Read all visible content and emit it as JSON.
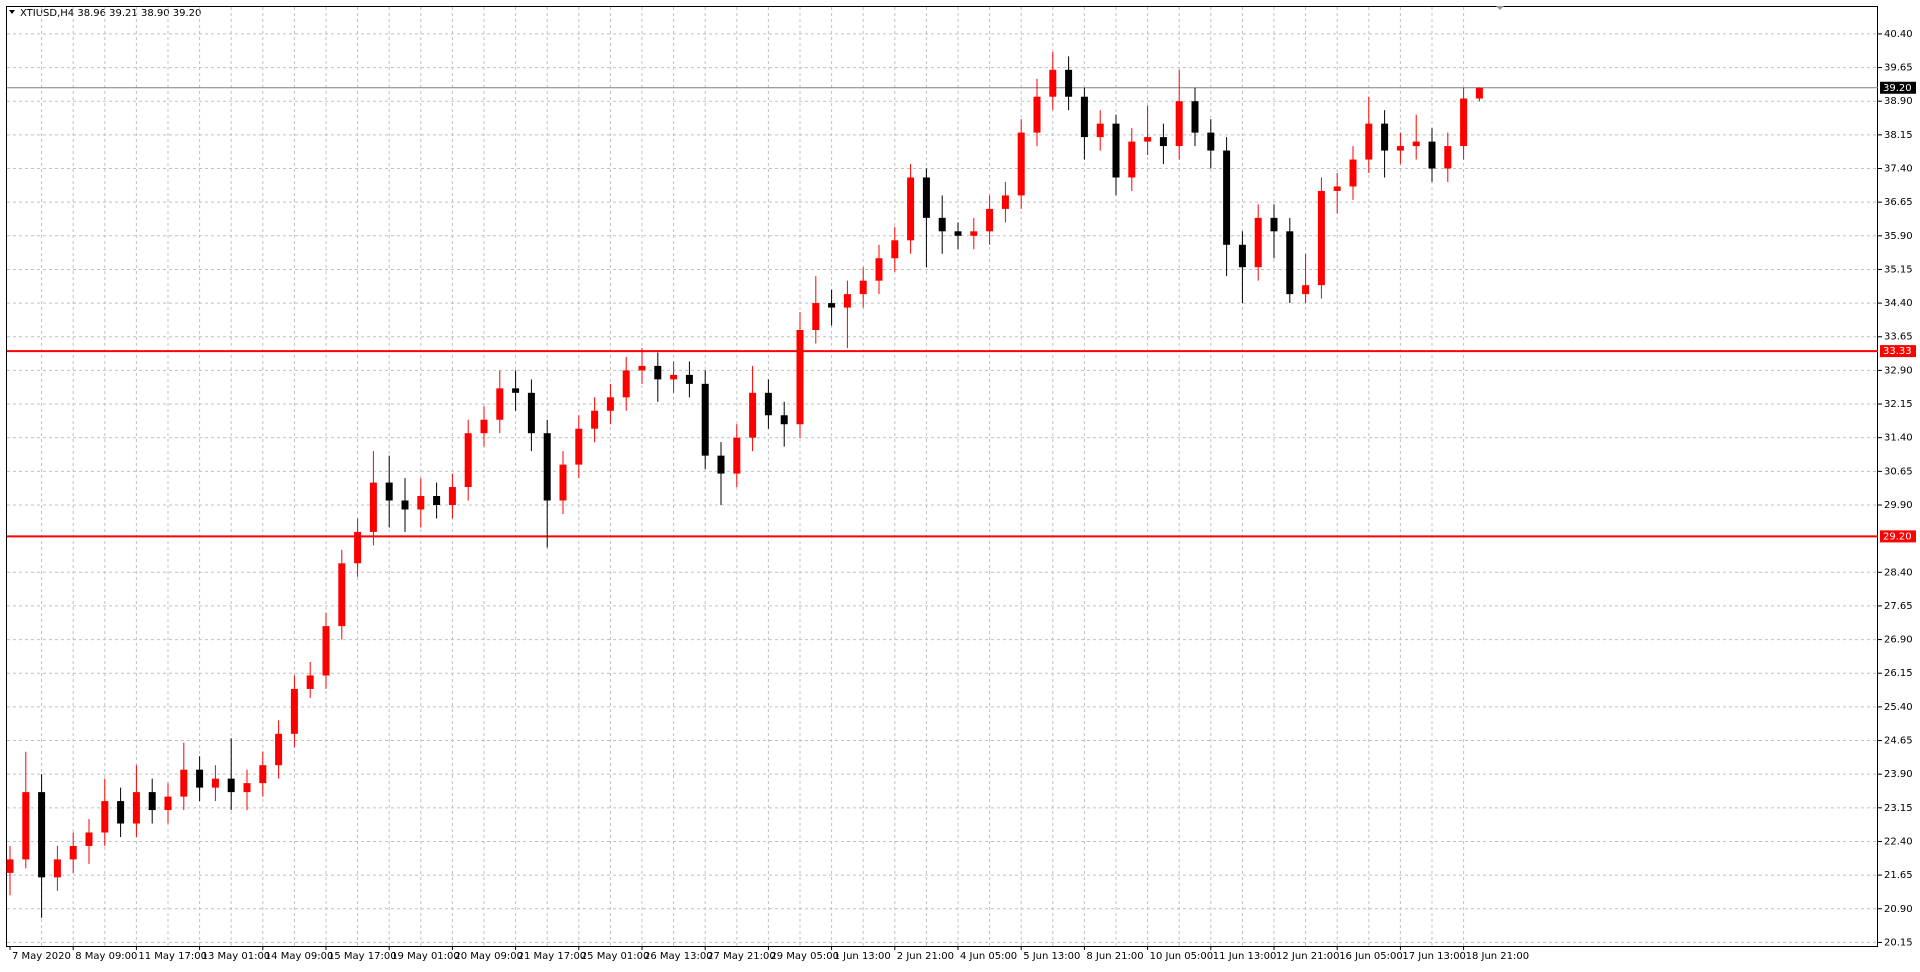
{
  "chart_data": {
    "type": "candlestick",
    "title": "XTIUSD,H4  38.96 39.21 38.90 39.20",
    "ylim": [
      20.07,
      41.0
    ],
    "yticks": [
      20.15,
      {
        "value": 20.9,
        "label": "20.90"
      },
      21.65,
      {
        "value": 22.4,
        "label": "22.40"
      },
      23.15,
      {
        "value": 23.9,
        "label": "23.90"
      },
      24.65,
      {
        "value": 25.4,
        "label": "25.40"
      },
      26.15,
      {
        "value": 26.9,
        "label": "26.90"
      },
      27.65,
      {
        "value": 28.4,
        "label": "28.40"
      },
      {
        "value": 29.9,
        "label": "29.90"
      },
      30.65,
      {
        "value": 31.4,
        "label": "31.40"
      },
      32.15,
      {
        "value": 32.9,
        "label": "32.90"
      },
      33.65,
      {
        "value": 34.4,
        "label": "34.40"
      },
      35.15,
      {
        "value": 35.9,
        "label": "35.90"
      },
      36.65,
      {
        "value": 37.4,
        "label": "37.40"
      },
      38.15,
      {
        "value": 38.9,
        "label": "38.90"
      },
      39.65,
      {
        "value": 40.4,
        "label": "40.40"
      }
    ],
    "grid": true,
    "up_color": "#ff0000",
    "down_color": "#000000",
    "levels": [
      {
        "value": 39.2,
        "label": "39.20",
        "color": "#808080"
      },
      {
        "value": 33.33,
        "label": "33.33",
        "color": "#ff0000"
      },
      {
        "value": 29.2,
        "label": "29.20",
        "color": "#ff0000"
      }
    ],
    "categories": [
      "7 May 2020",
      null,
      null,
      null,
      "8 May 09:00",
      null,
      null,
      null,
      "11 May 17:00",
      null,
      null,
      null,
      "13 May 01:00",
      null,
      null,
      null,
      "14 May 09:00",
      null,
      null,
      null,
      "15 May 17:00",
      null,
      null,
      null,
      "19 May 01:00",
      null,
      null,
      null,
      "20 May 09:00",
      null,
      null,
      null,
      "21 May 17:00",
      null,
      null,
      null,
      "25 May 01:00",
      null,
      null,
      null,
      "26 May 13:00",
      null,
      null,
      null,
      "27 May 21:00",
      null,
      null,
      null,
      "29 May 05:00",
      null,
      null,
      null,
      "1 Jun 13:00",
      null,
      null,
      null,
      "2 Jun 21:00",
      null,
      null,
      null,
      "4 Jun 05:00",
      null,
      null,
      null,
      "5 Jun 13:00",
      null,
      null,
      null,
      "8 Jun 21:00",
      null,
      null,
      null,
      "10 Jun 05:00",
      null,
      null,
      null,
      "11 Jun 13:00",
      null,
      null,
      null,
      "12 Jun 21:00",
      null,
      null,
      null,
      "16 Jun 05:00",
      null,
      null,
      null,
      "17 Jun 13:00",
      null,
      null,
      null,
      "18 Jun 21:00",
      null
    ],
    "open": [
      21.7,
      22.0,
      23.5,
      21.6,
      22.0,
      22.3,
      22.6,
      23.3,
      22.8,
      23.5,
      23.1,
      23.4,
      24.0,
      23.6,
      23.8,
      23.5,
      23.7,
      24.1,
      24.8,
      25.8,
      26.1,
      27.2,
      28.6,
      29.3,
      30.4,
      30.0,
      29.8,
      30.1,
      29.9,
      30.3,
      31.5,
      31.8,
      32.5,
      32.4,
      31.5,
      30.0,
      30.8,
      31.6,
      32.0,
      32.3,
      32.9,
      33.0,
      32.7,
      32.8,
      32.6,
      31.0,
      30.6,
      31.4,
      32.4,
      31.9,
      31.7,
      33.8,
      34.4,
      34.3,
      34.6,
      34.9,
      35.4,
      35.8,
      37.2,
      36.3,
      36.0,
      35.9,
      36.0,
      36.5,
      36.8,
      38.2,
      39.0,
      39.6,
      39.0,
      38.1,
      38.4,
      37.2,
      38.0,
      38.1,
      37.9,
      38.9,
      38.2,
      37.8,
      35.7,
      35.2,
      36.3,
      36.0,
      34.6,
      34.8,
      36.9,
      37.0,
      37.6,
      38.4,
      37.8,
      37.9,
      38.0,
      37.4,
      37.9,
      38.96
    ],
    "high": [
      22.3,
      24.4,
      23.9,
      22.3,
      22.6,
      22.9,
      23.8,
      23.6,
      24.1,
      23.8,
      23.7,
      24.6,
      24.3,
      24.1,
      24.7,
      24.0,
      24.4,
      25.1,
      26.1,
      26.4,
      27.5,
      28.9,
      29.6,
      31.1,
      31.0,
      30.5,
      30.5,
      30.4,
      30.6,
      31.8,
      32.1,
      32.9,
      32.9,
      32.7,
      31.8,
      31.1,
      31.9,
      32.3,
      32.6,
      33.2,
      33.4,
      33.3,
      33.1,
      33.1,
      32.9,
      31.3,
      31.7,
      33.0,
      32.7,
      32.2,
      34.2,
      35.0,
      34.7,
      34.9,
      35.2,
      35.7,
      36.1,
      37.5,
      37.4,
      36.8,
      36.2,
      36.3,
      36.8,
      37.1,
      38.5,
      39.4,
      40.0,
      39.9,
      39.2,
      38.7,
      38.6,
      38.3,
      38.8,
      38.4,
      39.6,
      39.2,
      38.5,
      38.1,
      36.0,
      36.6,
      36.6,
      36.3,
      35.5,
      37.2,
      37.3,
      37.9,
      39.0,
      38.7,
      38.2,
      38.6,
      38.3,
      38.2,
      39.2,
      39.21
    ],
    "low": [
      21.2,
      21.8,
      20.7,
      21.3,
      21.7,
      21.9,
      22.3,
      22.5,
      22.5,
      22.8,
      22.8,
      23.1,
      23.3,
      23.3,
      23.1,
      23.1,
      23.4,
      23.8,
      24.5,
      25.6,
      25.8,
      26.9,
      28.3,
      29.0,
      29.4,
      29.3,
      29.4,
      29.6,
      29.6,
      30.0,
      31.2,
      31.5,
      32.0,
      31.1,
      28.95,
      29.7,
      30.5,
      31.3,
      31.7,
      32.0,
      32.6,
      32.2,
      32.4,
      32.3,
      30.7,
      29.9,
      30.3,
      31.1,
      31.6,
      31.2,
      31.4,
      33.5,
      33.9,
      33.4,
      34.3,
      34.6,
      35.1,
      35.5,
      35.2,
      35.5,
      35.6,
      35.6,
      35.7,
      36.2,
      36.5,
      37.9,
      38.7,
      38.7,
      37.6,
      37.8,
      36.8,
      36.9,
      37.7,
      37.5,
      37.6,
      37.9,
      37.4,
      35.0,
      34.4,
      34.9,
      35.4,
      34.4,
      34.4,
      34.5,
      36.4,
      36.7,
      37.3,
      37.2,
      37.5,
      37.6,
      37.1,
      37.1,
      37.6,
      38.9
    ],
    "close": [
      22.0,
      23.5,
      21.6,
      22.0,
      22.3,
      22.6,
      23.3,
      22.8,
      23.5,
      23.1,
      23.4,
      24.0,
      23.6,
      23.8,
      23.5,
      23.7,
      24.1,
      24.8,
      25.8,
      26.1,
      27.2,
      28.6,
      29.3,
      30.4,
      30.0,
      29.8,
      30.1,
      29.9,
      30.3,
      31.5,
      31.8,
      32.5,
      32.4,
      31.5,
      30.0,
      30.8,
      31.6,
      32.0,
      32.3,
      32.9,
      33.0,
      32.7,
      32.8,
      32.6,
      31.0,
      30.6,
      31.4,
      32.4,
      31.9,
      31.7,
      33.8,
      34.4,
      34.3,
      34.6,
      34.9,
      35.4,
      35.8,
      37.2,
      36.3,
      36.0,
      35.9,
      36.0,
      36.5,
      36.8,
      38.2,
      39.0,
      39.6,
      39.0,
      38.1,
      38.4,
      37.2,
      38.0,
      38.1,
      37.9,
      38.9,
      38.2,
      37.8,
      35.7,
      35.2,
      36.3,
      36.0,
      34.6,
      34.8,
      36.9,
      37.0,
      37.6,
      38.4,
      37.8,
      37.9,
      38.0,
      37.4,
      37.9,
      38.96,
      39.2
    ]
  }
}
